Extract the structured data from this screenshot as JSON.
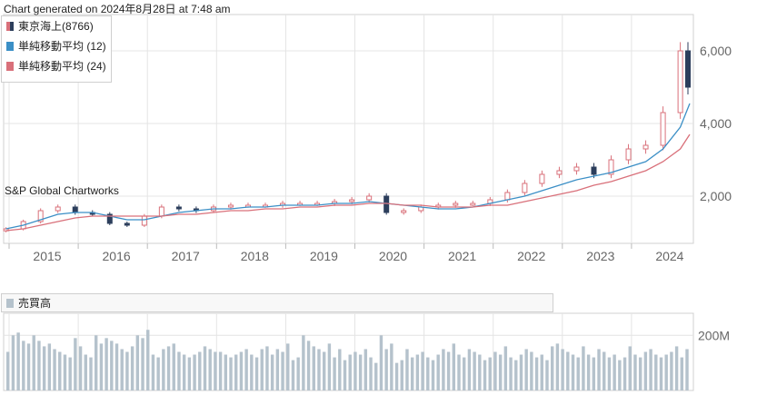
{
  "header": {
    "generated_text": "Chart generated on 2024年8月28日 at 7:48 am"
  },
  "watermark": "S&P Global Chartworks",
  "colors": {
    "candle_up": "#d9707a",
    "candle_down": "#2c3e5c",
    "ma12": "#3b8fc6",
    "ma24": "#d9707a",
    "volume": "#b5c2cc",
    "grid": "#e4e4e4"
  },
  "chart_data": [
    {
      "type": "line",
      "legend": [
        "東京海上(8766)",
        "単純移動平均 (12)",
        "単純移動平均 (24)"
      ],
      "x": [
        "2014-09",
        "2014-12",
        "2015-03",
        "2015-06",
        "2015-09",
        "2015-12",
        "2016-03",
        "2016-06",
        "2016-09",
        "2016-12",
        "2017-03",
        "2017-06",
        "2017-09",
        "2017-12",
        "2018-03",
        "2018-06",
        "2018-09",
        "2018-12",
        "2019-03",
        "2019-06",
        "2019-09",
        "2019-12",
        "2020-03",
        "2020-06",
        "2020-09",
        "2020-12",
        "2021-03",
        "2021-06",
        "2021-09",
        "2021-12",
        "2022-03",
        "2022-06",
        "2022-09",
        "2022-12",
        "2023-03",
        "2023-06",
        "2023-09",
        "2023-12",
        "2024-03",
        "2024-06",
        "2024-08"
      ],
      "series": [
        {
          "name": "東京海上(8766)",
          "values": [
            1100,
            1300,
            1600,
            1700,
            1550,
            1500,
            1250,
            1200,
            1450,
            1700,
            1650,
            1600,
            1700,
            1750,
            1750,
            1750,
            1800,
            1800,
            1800,
            1850,
            1900,
            2000,
            1550,
            1600,
            1700,
            1750,
            1800,
            1800,
            1900,
            2100,
            2350,
            2600,
            2700,
            2800,
            2600,
            3000,
            3300,
            3400,
            4300,
            6000,
            5000
          ]
        },
        {
          "name": "単純移動平均 (12)",
          "values": [
            1100,
            1200,
            1350,
            1500,
            1550,
            1550,
            1450,
            1350,
            1350,
            1450,
            1550,
            1600,
            1650,
            1650,
            1700,
            1700,
            1750,
            1750,
            1750,
            1800,
            1800,
            1850,
            1800,
            1750,
            1700,
            1650,
            1650,
            1700,
            1800,
            1900,
            2000,
            2150,
            2300,
            2450,
            2550,
            2650,
            2800,
            2950,
            3300,
            3900,
            4550
          ]
        },
        {
          "name": "単純移動平均 (24)",
          "values": [
            1050,
            1100,
            1200,
            1300,
            1400,
            1450,
            1450,
            1450,
            1450,
            1450,
            1500,
            1500,
            1550,
            1600,
            1600,
            1650,
            1650,
            1700,
            1700,
            1750,
            1750,
            1800,
            1800,
            1750,
            1750,
            1700,
            1700,
            1700,
            1750,
            1750,
            1850,
            1950,
            2050,
            2150,
            2300,
            2400,
            2550,
            2700,
            2950,
            3300,
            3700
          ]
        }
      ],
      "ylim": [
        700,
        7000
      ],
      "y_ticks": [
        "2,000",
        "4,000",
        "6,000"
      ],
      "x_ticks": [
        "2015",
        "2016",
        "2017",
        "2018",
        "2019",
        "2020",
        "2021",
        "2022",
        "2023",
        "2024"
      ],
      "grid": true,
      "legend_position": "top-left"
    },
    {
      "type": "bar",
      "legend": [
        "売買高"
      ],
      "y_ticks": [
        "200M"
      ],
      "values_millions": [
        140,
        200,
        210,
        180,
        170,
        200,
        180,
        160,
        170,
        150,
        140,
        130,
        120,
        190,
        160,
        130,
        120,
        200,
        170,
        190,
        180,
        170,
        150,
        140,
        160,
        200,
        190,
        220,
        130,
        120,
        150,
        160,
        170,
        140,
        130,
        120,
        130,
        140,
        160,
        150,
        140,
        140,
        130,
        120,
        130,
        140,
        150,
        130,
        120,
        150,
        160,
        130,
        150,
        140,
        170,
        110,
        120,
        200,
        180,
        160,
        150,
        140,
        170,
        120,
        150,
        110,
        130,
        140,
        130,
        150,
        120,
        100,
        200,
        150,
        170,
        100,
        110,
        150,
        120,
        130,
        140,
        120,
        110,
        130,
        150,
        140,
        170,
        130,
        120,
        150,
        140,
        130,
        110,
        120,
        140,
        130,
        160,
        120,
        110,
        130,
        150,
        140,
        120,
        130,
        110,
        160,
        170,
        150,
        140,
        130,
        120,
        160,
        130,
        120,
        150,
        140,
        120,
        130,
        110,
        120,
        160,
        130,
        120,
        140,
        150,
        130,
        120,
        130,
        140,
        160,
        120,
        150
      ],
      "ylim": [
        0,
        280
      ],
      "grid": true
    }
  ]
}
